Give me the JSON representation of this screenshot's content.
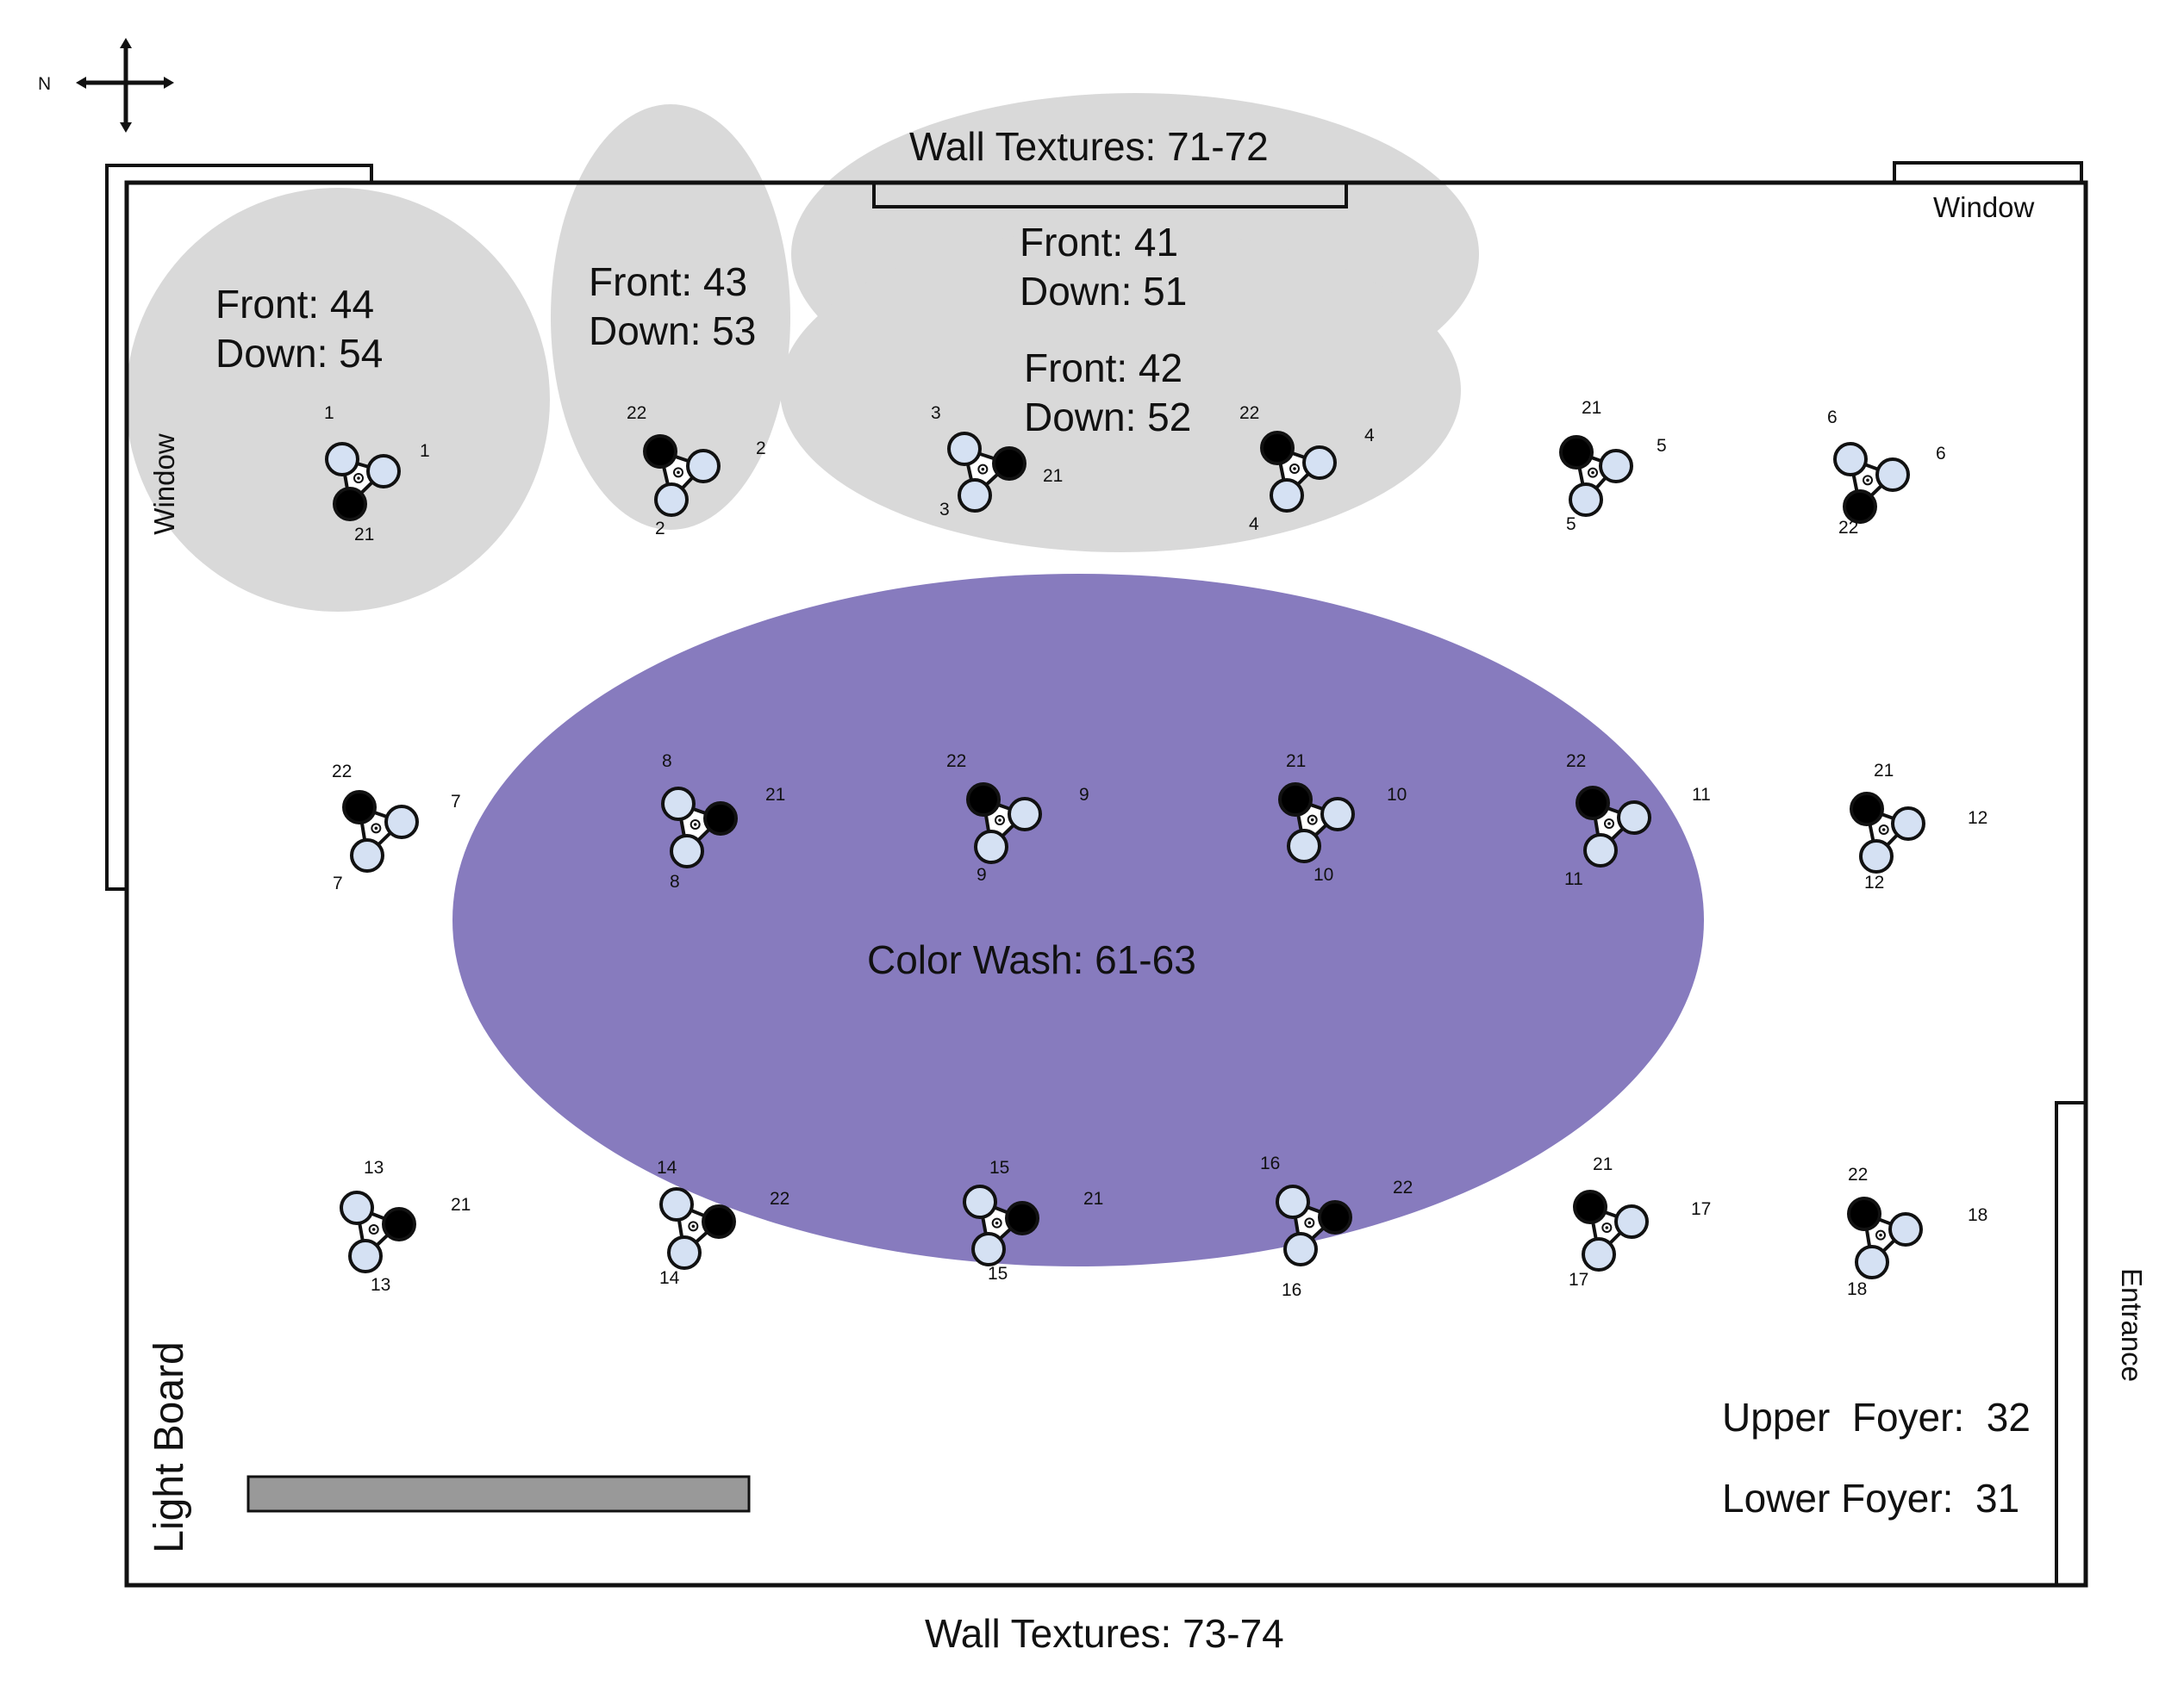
{
  "compass": {
    "north_label": "N"
  },
  "labels": {
    "wall_textures_top": "Wall Textures: 71-72",
    "wall_textures_bottom": "Wall Textures: 73-74",
    "window_top_right": "Window",
    "window_left": "Window",
    "entrance": "Entrance",
    "light_board": "Light Board",
    "upper_foyer": "Upper  Foyer:  32",
    "lower_foyer": "Lower Foyer:  31"
  },
  "zones": {
    "zone_44": {
      "front": "Front: 44",
      "down": "Down: 54"
    },
    "zone_43": {
      "front": "Front: 43",
      "down": "Down: 53"
    },
    "zone_41": {
      "front": "Front: 41",
      "down": "Down: 51"
    },
    "zone_42": {
      "front": "Front: 42",
      "down": "Down: 52"
    },
    "color_wash": "Color Wash: 61-63"
  },
  "colors": {
    "zone_fill": "#d9d9d9",
    "wash_fill": "#877bbe",
    "lamp_fill": "#d5e1f3",
    "active_lamp": "#000000",
    "light_board_fill": "#999999"
  },
  "fixtures": [
    {
      "labels": [
        "1",
        "1",
        "21"
      ]
    },
    {
      "labels": [
        "22",
        "2",
        "2"
      ]
    },
    {
      "labels": [
        "3",
        "21",
        "3"
      ]
    },
    {
      "labels": [
        "22",
        "4",
        "4"
      ]
    },
    {
      "labels": [
        "21",
        "5",
        "5"
      ]
    },
    {
      "labels": [
        "6",
        "6",
        "22"
      ]
    },
    {
      "labels": [
        "22",
        "7",
        "7"
      ]
    },
    {
      "labels": [
        "8",
        "21",
        "8"
      ]
    },
    {
      "labels": [
        "22",
        "9",
        "9"
      ]
    },
    {
      "labels": [
        "21",
        "10",
        "10"
      ]
    },
    {
      "labels": [
        "22",
        "11",
        "11"
      ]
    },
    {
      "labels": [
        "21",
        "12",
        "12"
      ]
    },
    {
      "labels": [
        "13",
        "21",
        "13"
      ]
    },
    {
      "labels": [
        "14",
        "22",
        "14"
      ]
    },
    {
      "labels": [
        "15",
        "21",
        "15"
      ]
    },
    {
      "labels": [
        "16",
        "22",
        "16"
      ]
    },
    {
      "labels": [
        "21",
        "17",
        "17"
      ]
    },
    {
      "labels": [
        "22",
        "18",
        "18"
      ]
    }
  ]
}
